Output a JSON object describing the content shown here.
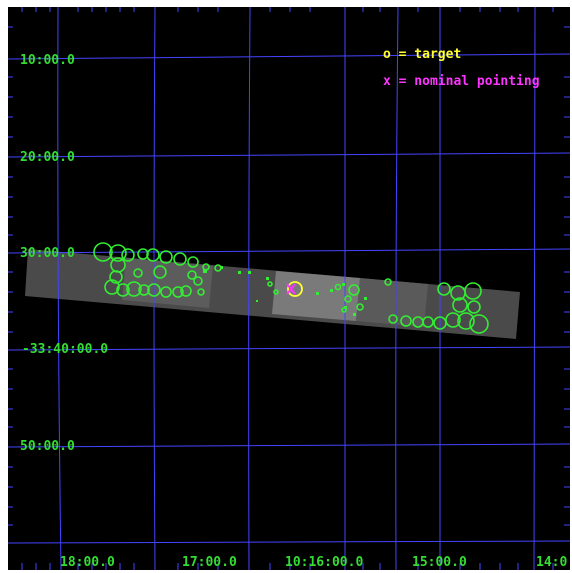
{
  "legend": {
    "target": "o = target",
    "nominal": "x = nominal pointing"
  },
  "axes": {
    "dec_labels": [
      "10:00.0",
      "20:00.0",
      "30:00.0",
      "-33:40:00.0",
      "50:00.0"
    ],
    "ra_labels": [
      "18:00.0",
      "17:00.0",
      "10:16:00.0",
      "15:00.0",
      "14:0"
    ]
  },
  "colors": {
    "grid": "#4444ff",
    "labels": "#33dd33",
    "sources": "#33ee33",
    "target": "#ffff33",
    "nominal": "#ff33ff",
    "background": "#000000"
  },
  "markers": {
    "target_icon": "circle-icon",
    "nominal_icon": "cross-icon"
  }
}
